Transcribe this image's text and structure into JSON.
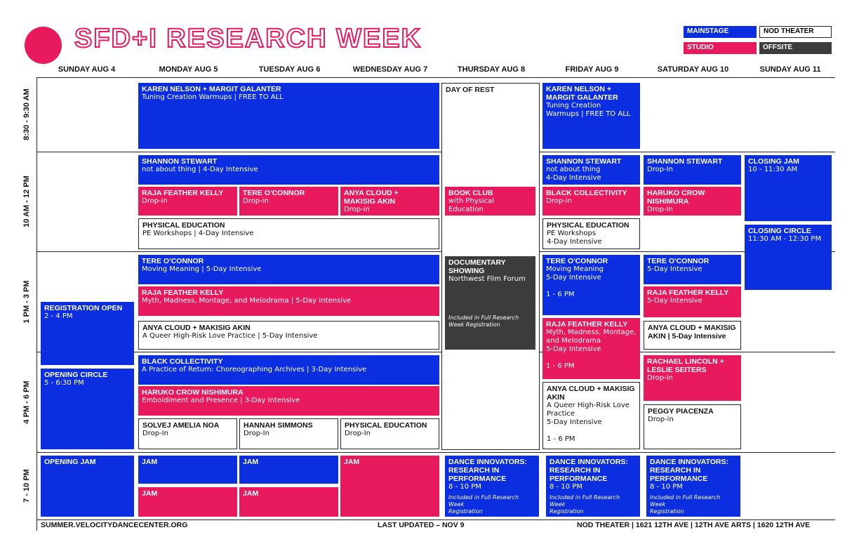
{
  "title": "SFD+I RESEARCH WEEK",
  "legend": {
    "mainstage": "MAINSTAGE",
    "nod_theater": "NOD THEATER",
    "studio": "STUDIO",
    "offsite": "OFFSITE"
  },
  "colors": {
    "mainstage": "#0b2ee0",
    "studio": "#e8195d",
    "offsite": "#3c3c3c",
    "nod_theater": "#ffffff"
  },
  "days": [
    "SUNDAY AUG 4",
    "MONDAY AUG 5",
    "TUESDAY AUG 6",
    "WEDNESDAY AUG 7",
    "THURSDAY AUG 8",
    "FRIDAY AUG 9",
    "SATURDAY AUG 10",
    "SUNDAY AUG 11"
  ],
  "times": [
    "8:30 - 9:30 AM",
    "10 AM - 12 PM",
    "1 PM - 3 PM",
    "4 PM - 6 PM",
    "7 - 10 PM"
  ],
  "events": {
    "knmg_mon": {
      "title": "KAREN NELSON + MARGIT GALANTER",
      "sub": "Tuning Creation Warmups  |  FREE TO ALL"
    },
    "rest_thu": {
      "title": "DAY OF REST"
    },
    "knmg_fri": {
      "title": "KAREN NELSON +\nMARGIT GALANTER",
      "sub": "Tuning Creation\nWarmups  |  FREE TO ALL"
    },
    "ss_mon": {
      "title": "SHANNON STEWART",
      "sub": "not about thing  |  4-Day Intensive"
    },
    "ss_fri": {
      "title": "SHANNON STEWART",
      "sub": "not about thing\n4-Day Intensive"
    },
    "ss_sat": {
      "title": "SHANNON STEWART",
      "sub": "Drop-In"
    },
    "closing_jam": {
      "title": "CLOSING JAM",
      "sub": "10 - 11:30 AM"
    },
    "rfk_mon": {
      "title": "RAJA FEATHER KELLY",
      "sub": "Drop-in"
    },
    "toc_tue": {
      "title": "TERE O'CONNOR",
      "sub": "Drop-in"
    },
    "acma_wed": {
      "title": "ANYA CLOUD +\nMAKISIG AKIN",
      "sub": "Drop-in"
    },
    "bookclub": {
      "title": "BOOK CLUB",
      "sub": "with Physical\nEducation"
    },
    "bc_fri": {
      "title": "BLACK COLLECTIVITY",
      "sub": "Drop-in"
    },
    "hcn_sat": {
      "title": "HARUKO CROW\nNISHIMURA",
      "sub": "Drop-in"
    },
    "pe_mon": {
      "title": "PHYSICAL EDUCATION",
      "sub": "PE Workshops  |  4-Day Intensive"
    },
    "pe_fri": {
      "title": "PHYSICAL EDUCATION",
      "sub": "PE Workshops\n4-Day Intensive"
    },
    "closing_circle": {
      "title": "CLOSING CIRCLE",
      "sub": "11:30 AM - 12:30 PM"
    },
    "toc_mon": {
      "title": "TERE O'CONNOR",
      "sub": "Moving Meaning  |  5-Day Intensive"
    },
    "doc_thu": {
      "title": "DOCUMENTARY\nSHOWING",
      "sub": "Northwest Film Forum",
      "note": "Included in Full Research\nWeek Registration"
    },
    "toc_fri": {
      "title": "TERE O'CONNOR",
      "sub": "Moving Meaning\n5-Day Intensive",
      "extra": "1 - 6 PM"
    },
    "toc_sat": {
      "title": "TERE O'CONNOR",
      "sub": "5-Day Intensive"
    },
    "rfk_mon2": {
      "title": "RAJA FEATHER KELLY",
      "sub": "Myth, Madness, Montage, and Melodrama  |  5-Day Intensive"
    },
    "rfk_sat": {
      "title": "RAJA FEATHER KELLY",
      "sub": "5-Day Intensive"
    },
    "reg_open": {
      "title": "REGISTRATION OPEN",
      "sub": "2 - 4 PM"
    },
    "rfk_fri": {
      "title": "RAJA FEATHER KELLY",
      "sub": "Myth, Madness, Montage,\nand Melodrama\n5-Day Intensive",
      "extra": "1 - 6 PM"
    },
    "acma_mon": {
      "title": "ANYA CLOUD + MAKISIG AKIN",
      "sub": "A Queer High-Risk Love Practice  |  5-Day Intensive"
    },
    "acma_sat": {
      "title": "ANYA CLOUD + MAKISIG\nAKIN  |  5-Day Intensive"
    },
    "bc_mon": {
      "title": "BLACK COLLECTIVITY",
      "sub": "A Practice of Return: Choreographing Archives  |  3-Day Intensive"
    },
    "opening_circle": {
      "title": "OPENING CIRCLE",
      "sub": "5 - 6:30 PM"
    },
    "rlls_sat": {
      "title": "RACHAEL LINCOLN +\nLESLIE SEITERS",
      "sub": "Drop-in"
    },
    "hcn_mon": {
      "title": "HARUKO CROW NISHIMURA",
      "sub": "Emboidiment and Presence  |  3-Day Intensive"
    },
    "acma_fri": {
      "title": "ANYA CLOUD + MAKISIG\nAKIN",
      "sub": "A Queer High-Risk Love\nPractice\n5-Day Intensive",
      "extra": "1 - 6 PM"
    },
    "pp_sat": {
      "title": "PEGGY PIACENZA",
      "sub": "Drop-in"
    },
    "san_mon": {
      "title": "SOLVEJ AMELIA NOA",
      "sub": "Drop-In"
    },
    "hs_tue": {
      "title": "HANNAH SIMMONS",
      "sub": "Drop-In"
    },
    "pe_wed": {
      "title": "PHYSICAL EDUCATION",
      "sub": "Drop-In"
    },
    "opening_jam": {
      "title": "OPENING JAM"
    },
    "jam_mon1": {
      "title": "JAM"
    },
    "jam_tue1": {
      "title": "JAM"
    },
    "jam_wed": {
      "title": "JAM"
    },
    "jam_mon2": {
      "title": "JAM"
    },
    "jam_tue2": {
      "title": "JAM"
    },
    "dirp_thu": {
      "title": "DANCE INNOVATORS:\nRESEARCH IN\nPERFORMANCE",
      "sub": "8 - 10 PM",
      "note": "Included in Full Research Week\nRegistration"
    },
    "dirp_fri": {
      "title": "DANCE INNOVATORS:\nRESEARCH IN\nPERFORMANCE",
      "sub": "8 - 10 PM",
      "note": "Included in Full Research Week\nRegistration"
    },
    "dirp_sat": {
      "title": "DANCE INNOVATORS:\nRESEARCH IN\nPERFORMANCE",
      "sub": "8 - 10 PM",
      "note": "Included in Full Research Week\nRegistration"
    }
  },
  "footer": {
    "url": "SUMMER.VELOCITYDANCECENTER.ORG",
    "updated": "LAST UPDATED – NOV 9",
    "venues": "NOD THEATER | 1621 12TH AVE   |   12TH AVE ARTS | 1620 12TH AVE"
  }
}
